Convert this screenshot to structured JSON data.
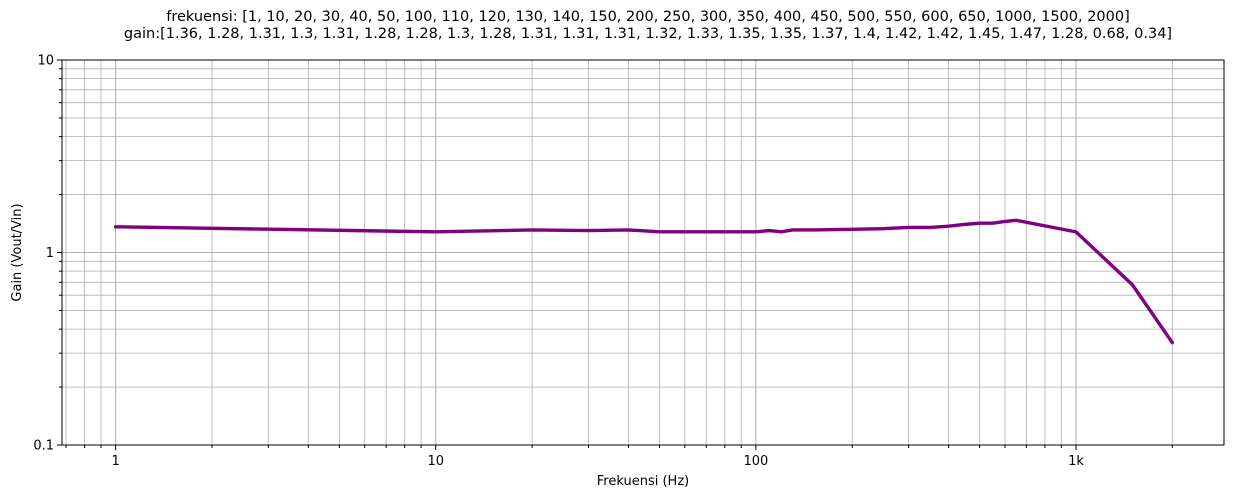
{
  "chart_data": {
    "type": "line",
    "title_line1": "frekuensi: [1, 10, 20, 30, 40, 50, 100, 110, 120, 130, 140, 150, 200, 250, 300, 350, 400, 450, 500, 550, 600, 650, 1000, 1500, 2000]",
    "title_line2": "gain:[1.36, 1.28, 1.31, 1.3, 1.31, 1.28, 1.28, 1.3, 1.28, 1.31, 1.31, 1.31, 1.32, 1.33, 1.35, 1.35, 1.37, 1.4, 1.42, 1.42, 1.45, 1.47, 1.28, 0.68, 0.34]",
    "xlabel": "Frekuensi (Hz)",
    "ylabel": "Gain (Vout/Vin)",
    "xscale": "log",
    "yscale": "log",
    "xlim": [
      0.68,
      2900
    ],
    "ylim": [
      0.1,
      10
    ],
    "xticks": [
      {
        "value": 1,
        "label": "1"
      },
      {
        "value": 10,
        "label": "10"
      },
      {
        "value": 100,
        "label": "100"
      },
      {
        "value": 1000,
        "label": "1k"
      }
    ],
    "yticks": [
      {
        "value": 0.1,
        "label": "0.1"
      },
      {
        "value": 1,
        "label": "1"
      },
      {
        "value": 10,
        "label": "10"
      }
    ],
    "grid": true,
    "grid_minor": true,
    "series": [
      {
        "color": "#800080",
        "x": [
          1,
          10,
          20,
          30,
          40,
          50,
          100,
          110,
          120,
          130,
          140,
          150,
          200,
          250,
          300,
          350,
          400,
          450,
          500,
          550,
          600,
          650,
          1000,
          1500,
          2000
        ],
        "y": [
          1.36,
          1.28,
          1.31,
          1.3,
          1.31,
          1.28,
          1.28,
          1.3,
          1.28,
          1.31,
          1.31,
          1.31,
          1.32,
          1.33,
          1.35,
          1.35,
          1.37,
          1.4,
          1.42,
          1.42,
          1.45,
          1.47,
          1.28,
          0.68,
          0.34
        ]
      }
    ]
  }
}
